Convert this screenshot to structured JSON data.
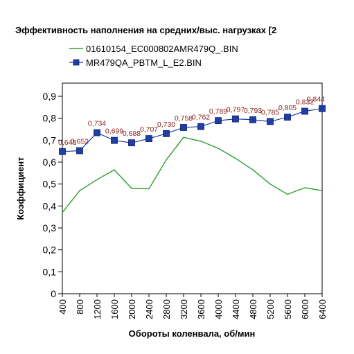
{
  "chart_data": {
    "type": "line",
    "title": "Эффективность наполнения на средних/выс. нагрузках [2",
    "xlabel": "Обороты коленвала, об/мин",
    "ylabel": "Коэффициент",
    "x": [
      400,
      800,
      1200,
      1600,
      2000,
      2400,
      2800,
      3200,
      3600,
      4000,
      4400,
      4800,
      5200,
      5600,
      6000,
      6400
    ],
    "xtick_labels": [
      "400",
      "800",
      "1200",
      "1600",
      "2000",
      "2400",
      "2800",
      "3200",
      "3600",
      "4000",
      "4400",
      "4800",
      "5200",
      "5600",
      "6000",
      "6400"
    ],
    "ylim": [
      0,
      0.96
    ],
    "xlim": [
      400,
      6400
    ],
    "yticks": [
      0,
      0.1,
      0.2,
      0.3,
      0.4,
      0.5,
      0.6,
      0.7,
      0.8,
      0.9
    ],
    "ytick_labels": [
      "0",
      "0,1",
      "0,2",
      "0,3",
      "0,4",
      "0,5",
      "0,6",
      "0,7",
      "0,8",
      "0,9"
    ],
    "grid": false,
    "legend_position": "top",
    "series": [
      {
        "name": "01610154_EC000802AMR479Q_.BIN",
        "color": "#2ca02c",
        "marker": "none",
        "values": [
          0.37,
          0.47,
          0.52,
          0.565,
          0.48,
          0.478,
          0.61,
          0.713,
          0.695,
          0.663,
          0.617,
          0.565,
          0.5,
          0.453,
          0.483,
          0.47
        ]
      },
      {
        "name": "MR479QA_PBTM_L_E2.BIN",
        "color": "#1f3fa6",
        "marker": "square",
        "values": [
          0.648,
          0.652,
          0.734,
          0.699,
          0.688,
          0.707,
          0.73,
          0.758,
          0.762,
          0.789,
          0.797,
          0.793,
          0.785,
          0.805,
          0.832,
          0.844
        ],
        "data_labels": [
          "0,648",
          "0,652",
          "0,734",
          "0,699",
          "0,688",
          "0,707",
          "0,730",
          "0,758",
          "0,762",
          "0,789",
          "0,797",
          "0,793",
          "0,785",
          "0,805",
          "0,832",
          "0,844"
        ]
      }
    ]
  }
}
